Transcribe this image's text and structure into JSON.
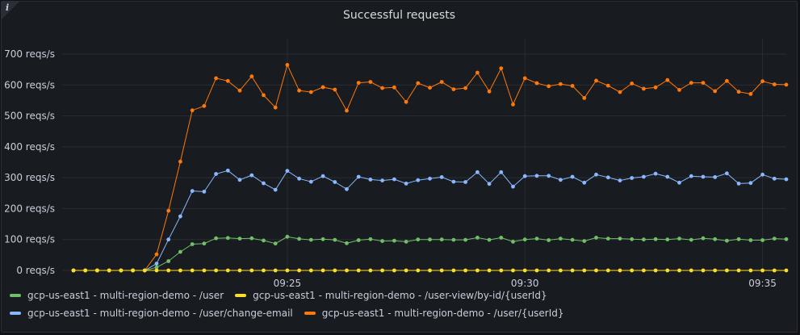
{
  "panel": {
    "title": "Successful requests",
    "info_icon": "info-icon"
  },
  "chart_data": {
    "type": "line",
    "title": "Successful requests",
    "xlabel": "",
    "ylabel": "",
    "y_unit": "reqs/s",
    "ylim": [
      0,
      720
    ],
    "y_ticks": [
      0,
      100,
      200,
      300,
      400,
      500,
      600,
      700
    ],
    "y_tick_labels": [
      "0 reqs/s",
      "100 reqs/s",
      "200 reqs/s",
      "300 reqs/s",
      "400 reqs/s",
      "500 reqs/s",
      "600 reqs/s",
      "700 reqs/s"
    ],
    "x_ticks": [
      "09:25",
      "09:30",
      "09:35"
    ],
    "x_start": "09:20:30",
    "x_step_seconds": 15,
    "grid": true,
    "legend_position": "bottom",
    "series": [
      {
        "name": "gcp-us-east1 - multi-region-demo - /user",
        "color": "#73bf69",
        "values": [
          0,
          0,
          0,
          0,
          0,
          0,
          0,
          10,
          30,
          60,
          85,
          87,
          104,
          105,
          103,
          104,
          97,
          87,
          109,
          102,
          99,
          101,
          99,
          88,
          98,
          101,
          95,
          96,
          93,
          100,
          100,
          100,
          99,
          99,
          106,
          99,
          106,
          93,
          100,
          103,
          98,
          103,
          99,
          95,
          106,
          103,
          103,
          101,
          100,
          101,
          100,
          103,
          99,
          104,
          101,
          96,
          101,
          98,
          98,
          103,
          101
        ]
      },
      {
        "name": "gcp-us-east1 - multi-region-demo - /user-view/by-id/{userId}",
        "color": "#fade2a",
        "values": [
          0,
          0,
          0,
          0,
          0,
          0,
          0,
          0,
          0,
          0,
          0,
          0,
          0,
          0,
          0,
          0,
          0,
          0,
          0,
          0,
          0,
          0,
          0,
          0,
          0,
          0,
          0,
          0,
          0,
          0,
          0,
          0,
          0,
          0,
          0,
          0,
          0,
          0,
          0,
          0,
          0,
          0,
          0,
          0,
          0,
          0,
          0,
          0,
          0,
          0,
          0,
          0,
          0,
          0,
          0,
          0,
          0,
          0,
          0,
          0,
          0
        ]
      },
      {
        "name": "gcp-us-east1 - multi-region-demo - /user/change-email",
        "color": "#8ab8ff",
        "values": [
          0,
          0,
          0,
          0,
          0,
          0,
          0,
          22,
          100,
          175,
          257,
          255,
          312,
          323,
          293,
          308,
          282,
          261,
          322,
          297,
          287,
          305,
          286,
          263,
          303,
          294,
          291,
          295,
          281,
          292,
          297,
          302,
          287,
          286,
          318,
          280,
          318,
          271,
          305,
          306,
          306,
          293,
          303,
          284,
          310,
          301,
          291,
          299,
          303,
          313,
          303,
          284,
          305,
          303,
          302,
          314,
          281,
          283,
          310,
          297,
          295
        ]
      },
      {
        "name": "gcp-us-east1 - multi-region-demo - /user/{userId}",
        "color": "#ff780a",
        "values": [
          0,
          0,
          0,
          0,
          0,
          0,
          0,
          52,
          193,
          352,
          518,
          532,
          622,
          613,
          582,
          628,
          567,
          527,
          665,
          582,
          577,
          593,
          585,
          517,
          607,
          610,
          590,
          592,
          545,
          606,
          591,
          610,
          586,
          590,
          640,
          579,
          654,
          537,
          622,
          606,
          596,
          603,
          597,
          558,
          614,
          598,
          577,
          605,
          588,
          592,
          616,
          584,
          607,
          607,
          580,
          613,
          578,
          571,
          612,
          602,
          601
        ]
      }
    ]
  }
}
